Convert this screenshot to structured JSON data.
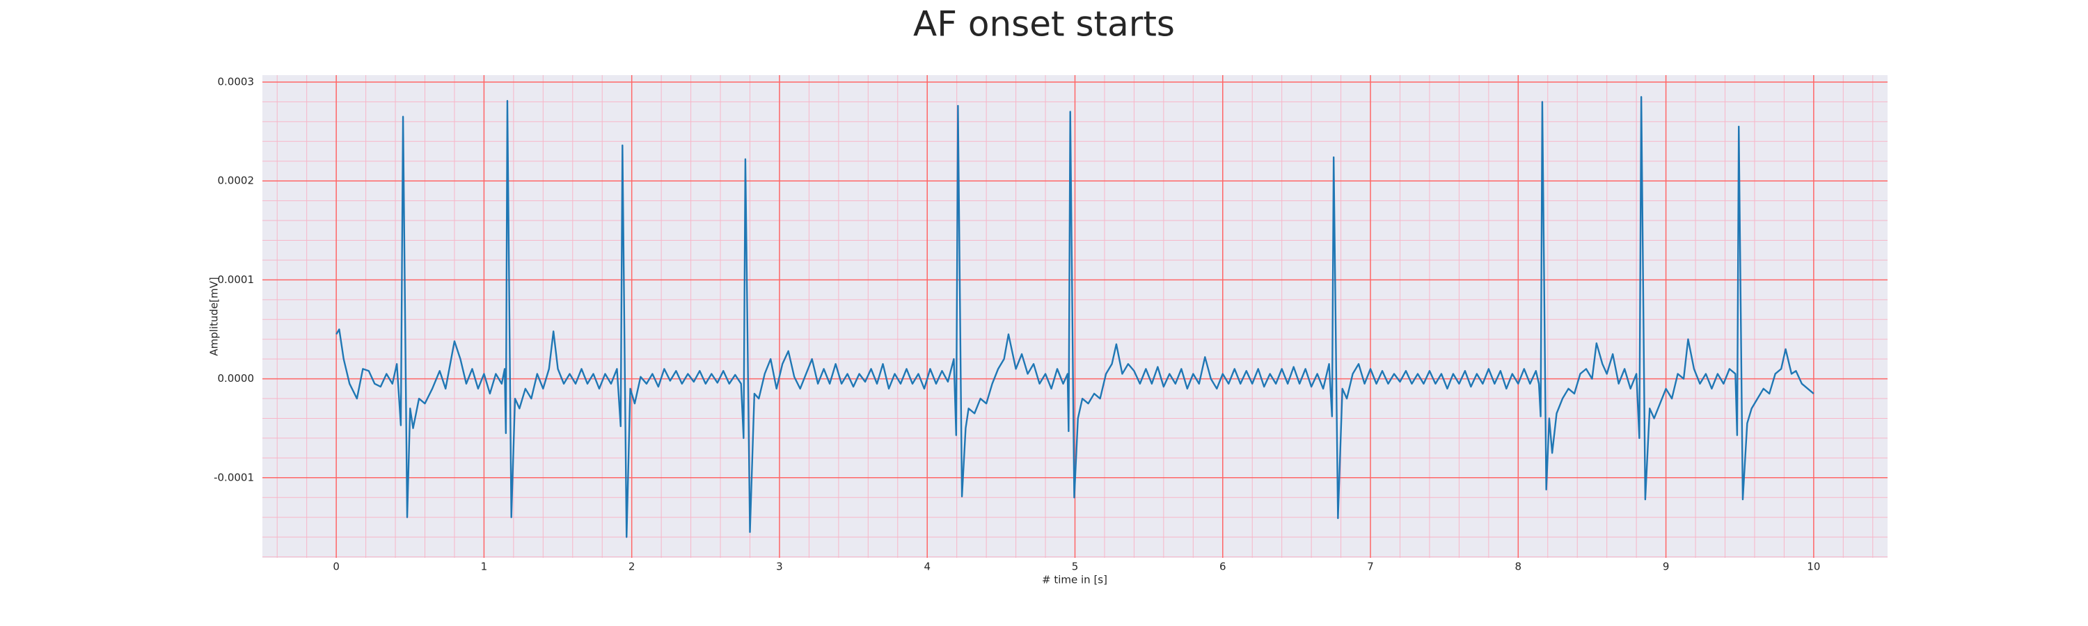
{
  "chart_data": {
    "type": "line",
    "title": "AF onset starts",
    "xlabel": "# time in [s]",
    "ylabel": "Amplitude[mV]",
    "color": "#1f77b4",
    "grid": true,
    "minor_grid": true,
    "xlim": [
      -0.5,
      10.5
    ],
    "ylim": [
      -0.000181,
      0.000307
    ],
    "xticks": [
      0,
      1,
      2,
      3,
      4,
      5,
      6,
      7,
      8,
      9,
      10
    ],
    "yticks": [
      -0.0001,
      {
        "value": 0,
        "label": "0.0000"
      },
      0.0001,
      0.0002,
      0.0003
    ],
    "x": [
      0,
      0.02,
      0.05,
      0.09,
      0.14,
      0.18,
      0.22,
      0.26,
      0.3,
      0.34,
      0.38,
      0.41,
      0.437,
      0.452,
      0.48,
      0.5,
      0.52,
      0.56,
      0.6,
      0.65,
      0.7,
      0.74,
      0.8,
      0.84,
      0.88,
      0.92,
      0.96,
      1.0,
      1.04,
      1.08,
      1.12,
      1.14,
      1.148,
      1.158,
      1.185,
      1.21,
      1.24,
      1.28,
      1.32,
      1.36,
      1.4,
      1.44,
      1.47,
      1.5,
      1.54,
      1.58,
      1.62,
      1.66,
      1.7,
      1.74,
      1.78,
      1.82,
      1.86,
      1.9,
      1.925,
      1.937,
      1.965,
      1.99,
      2.02,
      2.06,
      2.1,
      2.14,
      2.18,
      2.22,
      2.26,
      2.3,
      2.34,
      2.38,
      2.42,
      2.46,
      2.5,
      2.54,
      2.58,
      2.62,
      2.66,
      2.7,
      2.74,
      2.757,
      2.769,
      2.8,
      2.83,
      2.86,
      2.9,
      2.94,
      2.98,
      3.02,
      3.06,
      3.1,
      3.14,
      3.18,
      3.22,
      3.26,
      3.3,
      3.34,
      3.38,
      3.42,
      3.46,
      3.5,
      3.54,
      3.58,
      3.62,
      3.66,
      3.7,
      3.74,
      3.78,
      3.82,
      3.86,
      3.9,
      3.94,
      3.98,
      4.02,
      4.06,
      4.1,
      4.14,
      4.18,
      4.196,
      4.208,
      4.235,
      4.26,
      4.28,
      4.32,
      4.36,
      4.4,
      4.44,
      4.48,
      4.52,
      4.55,
      4.6,
      4.64,
      4.68,
      4.72,
      4.76,
      4.8,
      4.84,
      4.88,
      4.92,
      4.95,
      4.957,
      4.968,
      4.995,
      5.02,
      5.05,
      5.09,
      5.13,
      5.17,
      5.21,
      5.25,
      5.28,
      5.32,
      5.36,
      5.4,
      5.44,
      5.48,
      5.52,
      5.56,
      5.6,
      5.64,
      5.68,
      5.72,
      5.76,
      5.8,
      5.84,
      5.88,
      5.92,
      5.96,
      6.0,
      6.04,
      6.08,
      6.12,
      6.16,
      6.2,
      6.24,
      6.28,
      6.32,
      6.36,
      6.4,
      6.44,
      6.48,
      6.52,
      6.56,
      6.6,
      6.64,
      6.68,
      6.72,
      6.74,
      6.751,
      6.78,
      6.81,
      6.84,
      6.88,
      6.92,
      6.96,
      7.0,
      7.04,
      7.08,
      7.12,
      7.16,
      7.2,
      7.24,
      7.28,
      7.32,
      7.36,
      7.4,
      7.44,
      7.48,
      7.52,
      7.56,
      7.6,
      7.64,
      7.68,
      7.72,
      7.76,
      7.8,
      7.84,
      7.88,
      7.92,
      7.96,
      8.0,
      8.04,
      8.08,
      8.12,
      8.14,
      8.152,
      8.163,
      8.19,
      8.21,
      8.23,
      8.26,
      8.3,
      8.34,
      8.38,
      8.42,
      8.46,
      8.5,
      8.53,
      8.57,
      8.6,
      8.64,
      8.68,
      8.72,
      8.76,
      8.8,
      8.82,
      8.833,
      8.86,
      8.89,
      8.92,
      8.96,
      9.0,
      9.04,
      9.08,
      9.12,
      9.15,
      9.19,
      9.23,
      9.27,
      9.31,
      9.35,
      9.39,
      9.43,
      9.47,
      9.482,
      9.493,
      9.52,
      9.55,
      9.58,
      9.62,
      9.66,
      9.7,
      9.74,
      9.78,
      9.81,
      9.85,
      9.88,
      9.92,
      9.96,
      10.0
    ],
    "values": [
      4.5e-05,
      5e-05,
      2e-05,
      -5e-06,
      -2e-05,
      1e-05,
      8e-06,
      -5e-06,
      -8e-06,
      5e-06,
      -5e-06,
      1.5e-05,
      -4.7e-05,
      0.000265,
      -0.00014,
      -3e-05,
      -5e-05,
      -2e-05,
      -2.5e-05,
      -1e-05,
      8e-06,
      -1e-05,
      3.8e-05,
      2e-05,
      -5e-06,
      1e-05,
      -1e-05,
      5e-06,
      -1.5e-05,
      5e-06,
      -5e-06,
      1e-05,
      -5.5e-05,
      0.000281,
      -0.00014,
      -2e-05,
      -3e-05,
      -1e-05,
      -2e-05,
      5e-06,
      -1e-05,
      1e-05,
      4.8e-05,
      1e-05,
      -5e-06,
      5e-06,
      -5e-06,
      1e-05,
      -5e-06,
      5e-06,
      -1e-05,
      5e-06,
      -5e-06,
      1e-05,
      -4.8e-05,
      0.000236,
      -0.00016,
      -1e-05,
      -2.5e-05,
      2e-06,
      -5e-06,
      5e-06,
      -8e-06,
      1e-05,
      -2e-06,
      8e-06,
      -5e-06,
      5e-06,
      -3e-06,
      8e-06,
      -5e-06,
      5e-06,
      -4e-06,
      8e-06,
      -5e-06,
      4e-06,
      -5e-06,
      -6e-05,
      0.000222,
      -0.000155,
      -1.5e-05,
      -2e-05,
      5e-06,
      2e-05,
      -1e-05,
      1.5e-05,
      2.8e-05,
      2e-06,
      -1e-05,
      5e-06,
      2e-05,
      -5e-06,
      1e-05,
      -5e-06,
      1.5e-05,
      -5e-06,
      5e-06,
      -8e-06,
      5e-06,
      -3e-06,
      1e-05,
      -5e-06,
      1.5e-05,
      -1e-05,
      5e-06,
      -5e-06,
      1e-05,
      -5e-06,
      5e-06,
      -1e-05,
      1e-05,
      -5e-06,
      8e-06,
      -3e-06,
      2e-05,
      -5.7e-05,
      0.000276,
      -0.000119,
      -5e-05,
      -3e-05,
      -3.5e-05,
      -2e-05,
      -2.5e-05,
      -5e-06,
      1e-05,
      2e-05,
      4.5e-05,
      1e-05,
      2.5e-05,
      5e-06,
      1.5e-05,
      -5e-06,
      5e-06,
      -1e-05,
      1e-05,
      -5e-06,
      5e-06,
      -5.3e-05,
      0.00027,
      -0.00012,
      -4e-05,
      -2e-05,
      -2.5e-05,
      -1.5e-05,
      -2e-05,
      5e-06,
      1.5e-05,
      3.5e-05,
      5e-06,
      1.5e-05,
      8e-06,
      -5e-06,
      1e-05,
      -5e-06,
      1.2e-05,
      -8e-06,
      5e-06,
      -5e-06,
      1e-05,
      -1e-05,
      5e-06,
      -5e-06,
      2.2e-05,
      0.0,
      -1e-05,
      5e-06,
      -5e-06,
      1e-05,
      -5e-06,
      8e-06,
      -5e-06,
      1e-05,
      -8e-06,
      5e-06,
      -5e-06,
      1e-05,
      -5e-06,
      1.2e-05,
      -5e-06,
      1e-05,
      -8e-06,
      5e-06,
      -1e-05,
      1.5e-05,
      -3.8e-05,
      0.000224,
      -0.000141,
      -1e-05,
      -2e-05,
      5e-06,
      1.5e-05,
      -5e-06,
      1e-05,
      -5e-06,
      8e-06,
      -5e-06,
      5e-06,
      -3e-06,
      8e-06,
      -5e-06,
      5e-06,
      -5e-06,
      8e-06,
      -5e-06,
      5e-06,
      -1e-05,
      5e-06,
      -5e-06,
      8e-06,
      -8e-06,
      5e-06,
      -5e-06,
      1e-05,
      -5e-06,
      8e-06,
      -1e-05,
      5e-06,
      -5e-06,
      1e-05,
      -5e-06,
      8e-06,
      -5e-06,
      -3.8e-05,
      0.00028,
      -0.000112,
      -4e-05,
      -7.5e-05,
      -3.5e-05,
      -2e-05,
      -1e-05,
      -1.5e-05,
      5e-06,
      1e-05,
      0.0,
      3.6e-05,
      1.5e-05,
      5e-06,
      2.5e-05,
      -5e-06,
      1e-05,
      -1e-05,
      5e-06,
      -6e-05,
      0.000285,
      -0.000122,
      -3e-05,
      -4e-05,
      -2.5e-05,
      -1e-05,
      -2e-05,
      5e-06,
      0.0,
      4e-05,
      1e-05,
      -5e-06,
      5e-06,
      -1e-05,
      5e-06,
      -5e-06,
      1e-05,
      5e-06,
      -5.7e-05,
      0.000255,
      -0.000122,
      -4.5e-05,
      -3e-05,
      -2e-05,
      -1e-05,
      -1.5e-05,
      5e-06,
      1e-05,
      3e-05,
      5e-06,
      8e-06,
      -5e-06,
      -1e-05,
      -1.5e-05
    ]
  }
}
